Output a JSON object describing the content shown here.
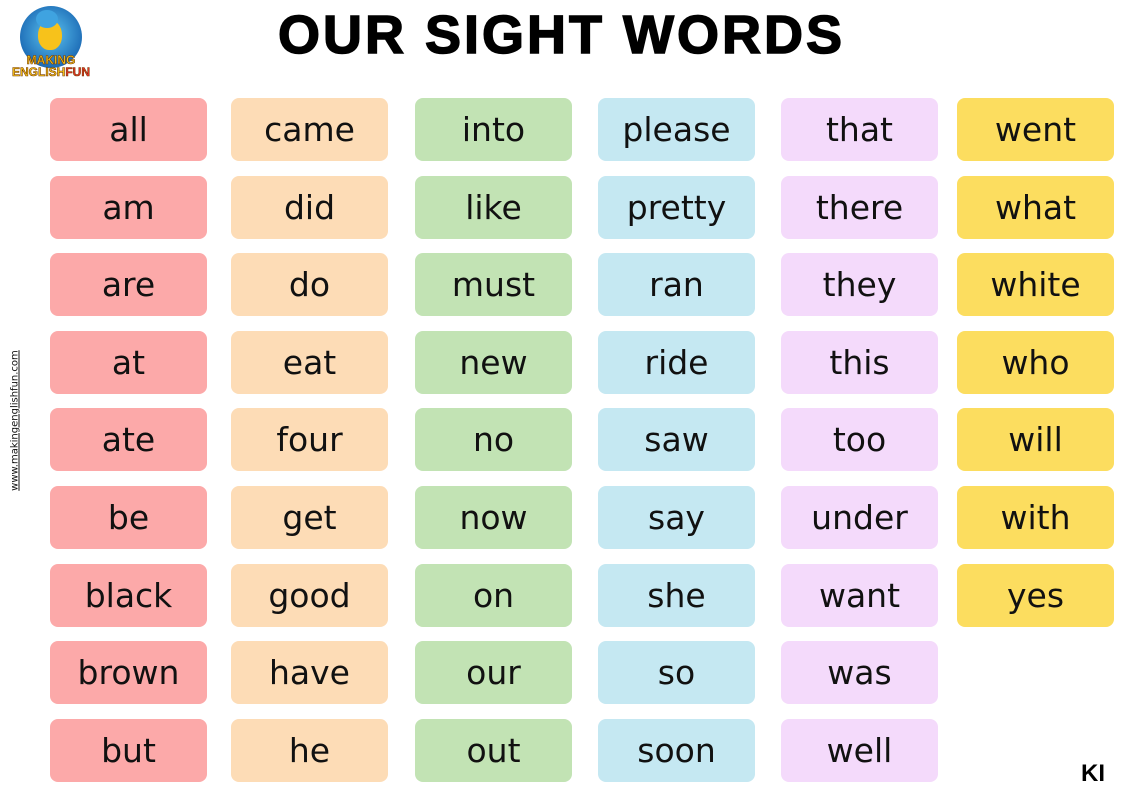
{
  "title": "OUR SIGHT WORDS",
  "logo": {
    "line1": "MAKING",
    "line2": "ENGLISH",
    "line3": "FUN"
  },
  "website": "www.makingenglishfun.com",
  "level_code": "KI",
  "columns": [
    {
      "color": "#fca9a9",
      "words": [
        "all",
        "am",
        "are",
        "at",
        "ate",
        "be",
        "black",
        "brown",
        "but"
      ]
    },
    {
      "color": "#fddcb6",
      "words": [
        "came",
        "did",
        "do",
        "eat",
        "four",
        "get",
        "good",
        "have",
        "he"
      ]
    },
    {
      "color": "#c2e3b4",
      "words": [
        "into",
        "like",
        "must",
        "new",
        "no",
        "now",
        "on",
        "our",
        "out"
      ]
    },
    {
      "color": "#c5e8f2",
      "words": [
        "please",
        "pretty",
        "ran",
        "ride",
        "saw",
        "say",
        "she",
        "so",
        "soon"
      ]
    },
    {
      "color": "#f4dafb",
      "words": [
        "that",
        "there",
        "they",
        "this",
        "too",
        "under",
        "want",
        "was",
        "well"
      ]
    },
    {
      "color": "#fcdd5f",
      "words": [
        "went",
        "what",
        "white",
        "who",
        "will",
        "with",
        "yes"
      ]
    }
  ]
}
